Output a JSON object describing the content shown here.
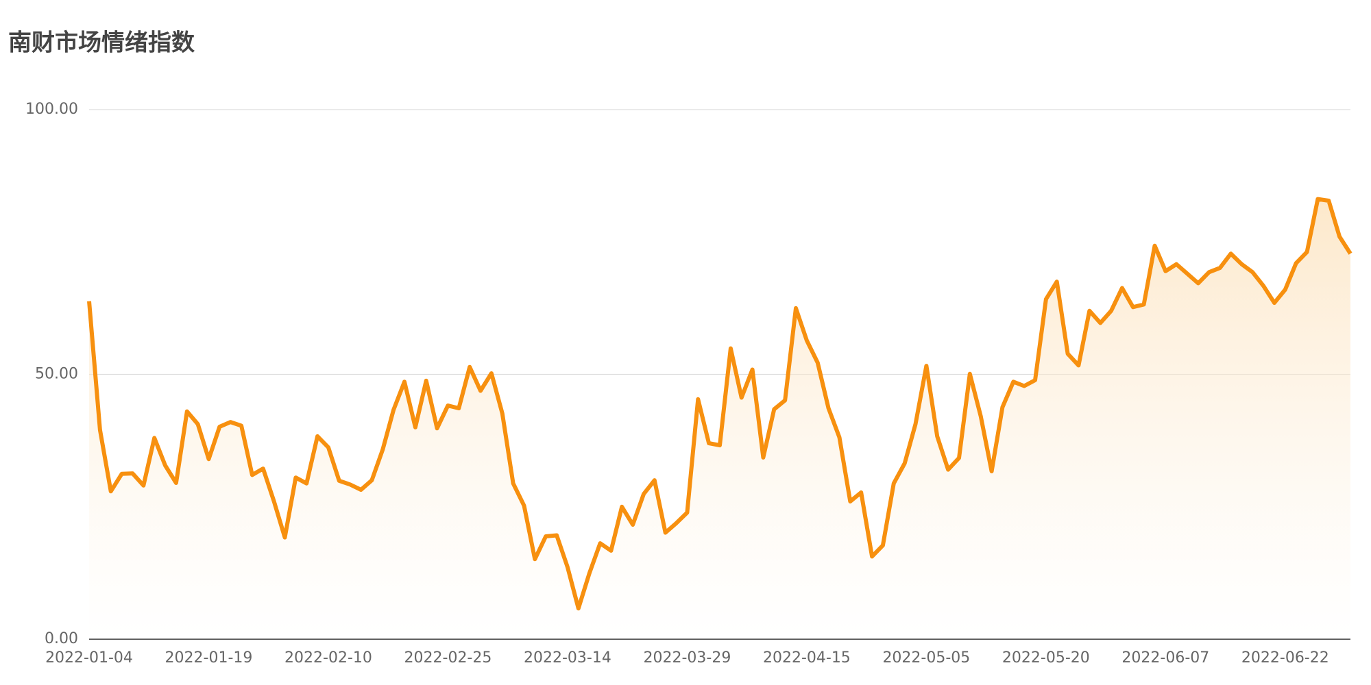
{
  "chart_data": {
    "type": "line",
    "title": "南财市场情绪指数",
    "categories": [
      "2022-01-04",
      null,
      null,
      null,
      null,
      null,
      null,
      null,
      null,
      null,
      null,
      "2022-01-19",
      null,
      null,
      null,
      null,
      null,
      null,
      null,
      null,
      null,
      null,
      "2022-02-10",
      null,
      null,
      null,
      null,
      null,
      null,
      null,
      null,
      null,
      null,
      "2022-02-25",
      null,
      null,
      null,
      null,
      null,
      null,
      null,
      null,
      null,
      null,
      "2022-03-14",
      null,
      null,
      null,
      null,
      null,
      null,
      null,
      null,
      null,
      null,
      "2022-03-29",
      null,
      null,
      null,
      null,
      null,
      null,
      null,
      null,
      null,
      null,
      "2022-04-15",
      null,
      null,
      null,
      null,
      null,
      null,
      null,
      null,
      null,
      null,
      "2022-05-05",
      null,
      null,
      null,
      null,
      null,
      null,
      null,
      null,
      null,
      null,
      "2022-05-20",
      null,
      null,
      null,
      null,
      null,
      null,
      null,
      null,
      null,
      null,
      "2022-06-07",
      null,
      null,
      null,
      null,
      null,
      null,
      null,
      null,
      null,
      null,
      "2022-06-22",
      null,
      null,
      null,
      null,
      null,
      null
    ],
    "series": [
      {
        "color": "#f7900f",
        "values": [
          63.8,
          39.5,
          27.9,
          31.2,
          31.3,
          29.0,
          38.0,
          32.8,
          29.5,
          43.0,
          40.6,
          34.0,
          40.1,
          41.0,
          40.3,
          31.0,
          32.2,
          26.0,
          19.2,
          30.5,
          29.4,
          38.3,
          36.2,
          29.9,
          29.2,
          28.2,
          30.0,
          35.8,
          43.3,
          48.6,
          40.0,
          48.8,
          39.8,
          44.1,
          43.6,
          51.4,
          46.9,
          50.2,
          42.6,
          29.4,
          25.2,
          15.1,
          19.4,
          19.6,
          13.6,
          5.8,
          12.4,
          18.1,
          16.7,
          25.0,
          21.6,
          27.4,
          30.0,
          20.1,
          21.9,
          23.9,
          45.3,
          37.0,
          36.6,
          54.9,
          45.6,
          50.9,
          34.3,
          43.4,
          45.1,
          62.5,
          56.4,
          52.2,
          43.6,
          38.1,
          26.0,
          27.7,
          15.6,
          17.7,
          29.4,
          33.2,
          40.6,
          51.6,
          38.3,
          32.0,
          34.2,
          50.1,
          42.1,
          31.7,
          43.8,
          48.6,
          47.8,
          48.9,
          64.2,
          67.5,
          53.9,
          51.7,
          62.0,
          59.7,
          62.0,
          66.3,
          62.7,
          63.2,
          74.3,
          69.5,
          70.8,
          69.0,
          67.2,
          69.3,
          70.1,
          72.8,
          70.8,
          69.3,
          66.7,
          63.5,
          66.0,
          71.0,
          73.1,
          83.1,
          82.8,
          76.0,
          72.8
        ]
      }
    ],
    "ylim": [
      0,
      100
    ],
    "yticks": [
      {
        "value": 0,
        "label": "0.00"
      },
      {
        "value": 50,
        "label": "50.00"
      },
      {
        "value": 100,
        "label": "100.00"
      }
    ],
    "grid": true
  }
}
